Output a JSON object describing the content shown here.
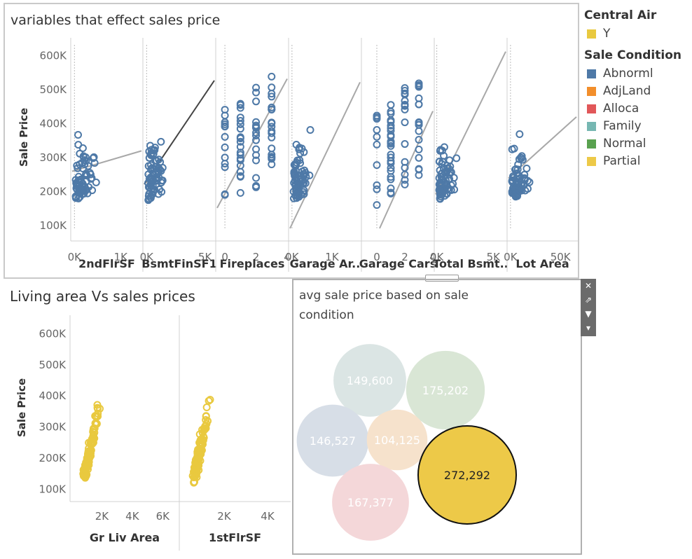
{
  "top_panel": {
    "title": "variables that effect sales price"
  },
  "left_panel": {
    "title": "Living area Vs sales prices"
  },
  "bubble_panel": {
    "title_line1": "avg sale price based  on sale",
    "title_line2": "condition"
  },
  "legend": {
    "central_air": {
      "title": "Central Air",
      "items": [
        {
          "label": "Y",
          "color": "#e9c93f"
        }
      ]
    },
    "sale_condition": {
      "title": "Sale Condition",
      "items": [
        {
          "label": "Abnorml",
          "color": "#4e79a7"
        },
        {
          "label": "AdjLand",
          "color": "#f28e2b"
        },
        {
          "label": "Alloca",
          "color": "#e15759"
        },
        {
          "label": "Family",
          "color": "#76b7b2"
        },
        {
          "label": "Normal",
          "color": "#59a14f"
        },
        {
          "label": "Partial",
          "color": "#edc948"
        }
      ]
    }
  },
  "toolbar": {
    "close": "✕",
    "popout": "⇗",
    "filter": "▼",
    "menu": "▾"
  },
  "chart_data": [
    {
      "type": "scatter",
      "ylabel": "Sale Price",
      "ylim": [
        90000,
        630000
      ],
      "yticks": [
        100000,
        200000,
        300000,
        400000,
        500000,
        600000
      ],
      "ytick_labels": [
        "100K",
        "200K",
        "300K",
        "400K",
        "500K",
        "600K"
      ],
      "marker_color": "#4e79a7",
      "panels": [
        {
          "xlabel": "2ndFlrSF",
          "xlim": [
            -50,
            1450
          ],
          "xticks": [
            0,
            1000
          ],
          "xtick_labels": [
            "0K",
            "1K"
          ],
          "trend": [
            [
              -50,
              258000
            ],
            [
              1450,
              318000
            ]
          ],
          "trend_color": "#a8a8a8"
        },
        {
          "xlabel": "BsmtFinSF1",
          "xlim": [
            -200,
            5800
          ],
          "xticks": [
            0,
            5000
          ],
          "xtick_labels": [
            "0K",
            "5K"
          ],
          "trend": [
            [
              -200,
              220000
            ],
            [
              5800,
              525000
            ]
          ],
          "trend_color": "#444444"
        },
        {
          "xlabel": "Fireplaces",
          "xlim": [
            -0.5,
            4
          ],
          "xticks": [
            0,
            2,
            4
          ],
          "xtick_labels": [
            "0",
            "2",
            "4"
          ],
          "trend": [
            [
              -0.5,
              150000
            ],
            [
              4,
              530000
            ]
          ],
          "trend_color": "#a8a8a8"
        },
        {
          "xlabel": "Garage Ar..",
          "xlim": [
            -50,
            1700
          ],
          "xticks": [
            0,
            1000
          ],
          "xtick_labels": [
            "0K",
            "1K"
          ],
          "trend": [
            [
              -50,
              90000
            ],
            [
              1700,
              520000
            ]
          ],
          "trend_color": "#a8a8a8"
        },
        {
          "xlabel": "Garage Cars",
          "xlim": [
            -1,
            4
          ],
          "xticks": [
            0,
            2,
            4
          ],
          "xtick_labels": [
            "0",
            "2",
            "4"
          ],
          "trend": [
            [
              0.2,
              90000
            ],
            [
              4,
              435000
            ]
          ],
          "trend_color": "#a8a8a8"
        },
        {
          "xlabel": "Total Bsmt..",
          "xlim": [
            -100,
            6100
          ],
          "xticks": [
            0,
            5000
          ],
          "xtick_labels": [
            "0K",
            "5K"
          ],
          "trend": [
            [
              -100,
              190000
            ],
            [
              6100,
              610000
            ]
          ],
          "trend_color": "#a8a8a8"
        },
        {
          "xlabel": "Lot Area",
          "xlim": [
            -2000,
            66000
          ],
          "xticks": [
            0,
            50000
          ],
          "xtick_labels": [
            "0K",
            "50K"
          ],
          "trend": [
            [
              -2000,
              238000
            ],
            [
              66000,
              418000
            ]
          ],
          "trend_color": "#a8a8a8"
        }
      ]
    },
    {
      "type": "scatter",
      "ylabel": "Sale Price",
      "ylim": [
        90000,
        630000
      ],
      "yticks": [
        100000,
        200000,
        300000,
        400000,
        500000,
        600000
      ],
      "ytick_labels": [
        "100K",
        "200K",
        "300K",
        "400K",
        "500K",
        "600K"
      ],
      "marker_color": "#e9c93f",
      "panels": [
        {
          "xlabel": "Gr Liv Area",
          "xlim": [
            0,
            7000
          ],
          "xticks": [
            2000,
            4000,
            6000
          ],
          "xtick_labels": [
            "2K",
            "4K",
            "6K"
          ]
        },
        {
          "xlabel": "1stFlrSF",
          "xlim": [
            0,
            5000
          ],
          "xticks": [
            2000,
            4000
          ],
          "xtick_labels": [
            "2K",
            "4K"
          ]
        }
      ]
    },
    {
      "type": "bubble",
      "bubbles": [
        {
          "label": "149,600",
          "value": 149600,
          "color": "#dbe5e4",
          "highlight": false
        },
        {
          "label": "175,202",
          "value": 175202,
          "color": "#d9e6d5",
          "highlight": false
        },
        {
          "label": "146,527",
          "value": 146527,
          "color": "#d7dee7",
          "highlight": false
        },
        {
          "label": "104,125",
          "value": 104125,
          "color": "#f6e2cc",
          "highlight": false
        },
        {
          "label": "167,377",
          "value": 167377,
          "color": "#f4d7d9",
          "highlight": false
        },
        {
          "label": "272,292",
          "value": 272292,
          "color": "#edc948",
          "highlight": true
        }
      ]
    }
  ]
}
